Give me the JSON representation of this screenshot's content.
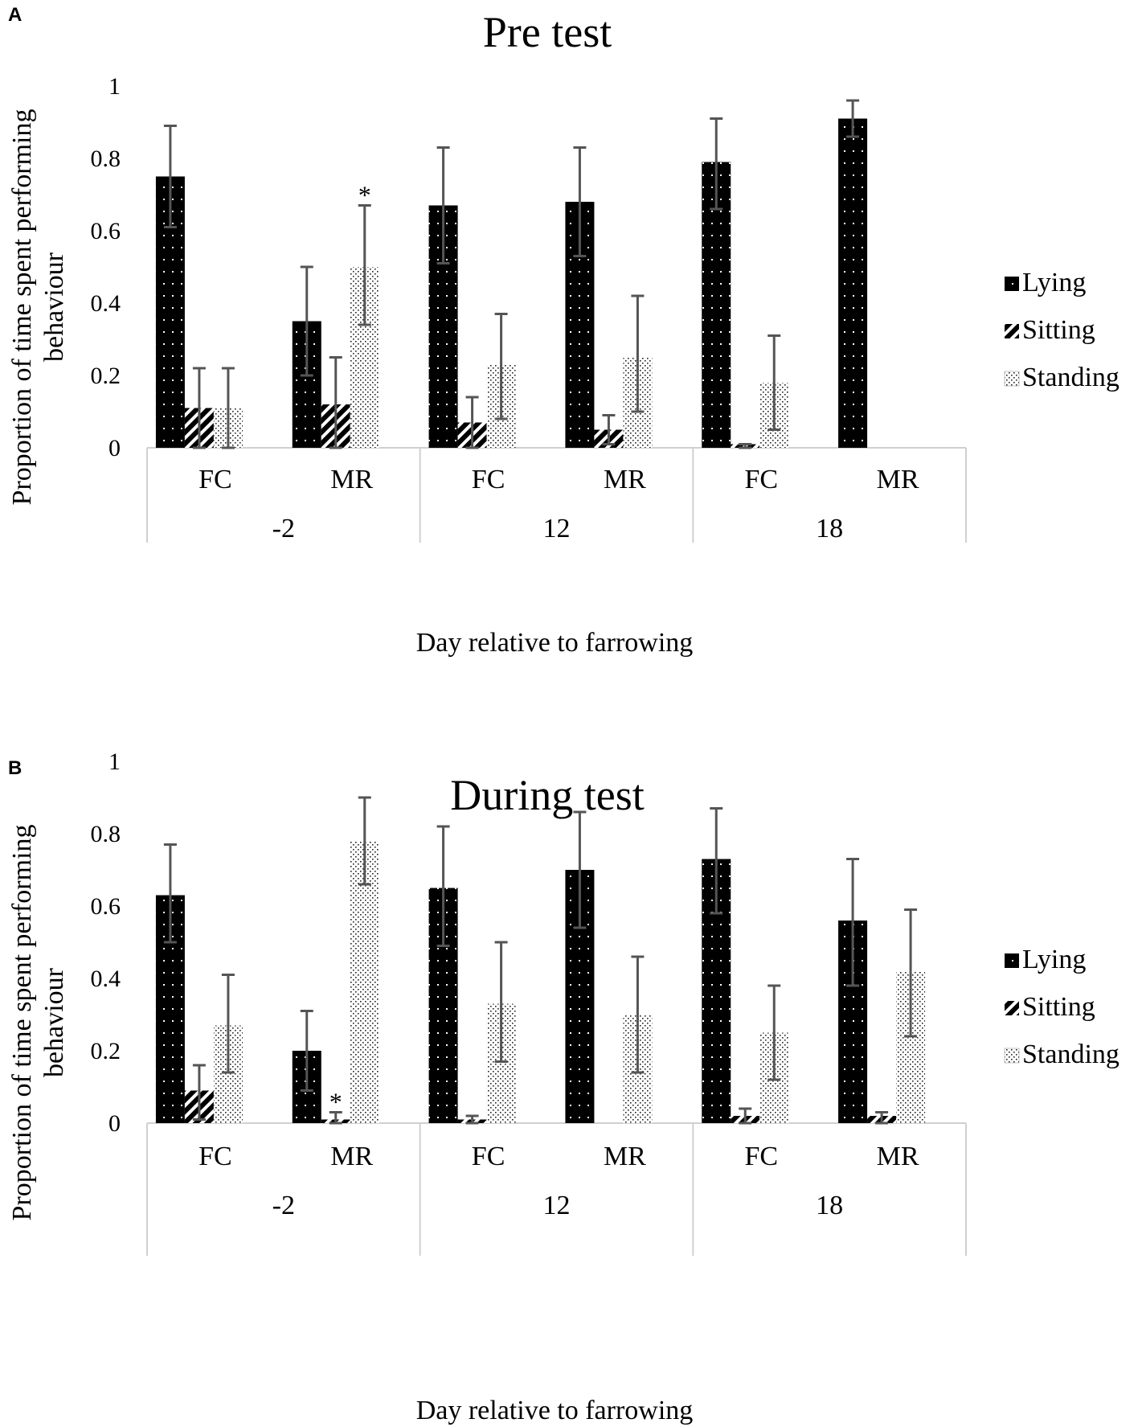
{
  "chart_data": [
    {
      "type": "bar",
      "panel": "A",
      "title": "Pre test",
      "xlabel": "Day relative to farrowing",
      "ylabel": [
        "Proportion of time spent performing",
        "behaviour"
      ],
      "ylim": [
        0,
        1
      ],
      "yticks": [
        "0",
        "0.2",
        "0.4",
        "0.6",
        "0.8",
        "1"
      ],
      "groups": [
        "-2",
        "12",
        "18"
      ],
      "categories": [
        "FC",
        "MR",
        "FC",
        "MR",
        "FC",
        "MR"
      ],
      "legend": [
        "Lying",
        "Sitting",
        "Standing"
      ],
      "series": [
        {
          "name": "Lying",
          "values": [
            0.75,
            0.35,
            0.67,
            0.68,
            0.79,
            0.91
          ],
          "err_low": [
            0.61,
            0.2,
            0.51,
            0.53,
            0.66,
            0.86
          ],
          "err_high": [
            0.89,
            0.5,
            0.83,
            0.83,
            0.91,
            0.96
          ]
        },
        {
          "name": "Sitting",
          "values": [
            0.11,
            0.12,
            0.07,
            0.05,
            0.01,
            0.0
          ],
          "err_low": [
            0.0,
            0.0,
            0.0,
            0.01,
            0.0,
            null
          ],
          "err_high": [
            0.22,
            0.25,
            0.14,
            0.09,
            0.01,
            null
          ]
        },
        {
          "name": "Standing",
          "values": [
            0.11,
            0.5,
            0.23,
            0.25,
            0.18,
            0.0
          ],
          "err_low": [
            0.0,
            0.34,
            0.08,
            0.1,
            0.05,
            null
          ],
          "err_high": [
            0.22,
            0.67,
            0.37,
            0.42,
            0.31,
            null
          ]
        }
      ],
      "annotations": [
        {
          "text": "*",
          "category_index": 1,
          "series": "Standing"
        }
      ]
    },
    {
      "type": "bar",
      "panel": "B",
      "title": "During test",
      "xlabel": "Day relative to farrowing",
      "ylabel": [
        "Proportion of time spent performing",
        "behaviour"
      ],
      "ylim": [
        0,
        1
      ],
      "yticks": [
        "0",
        "0.2",
        "0.4",
        "0.6",
        "0.8",
        "1"
      ],
      "groups": [
        "-2",
        "12",
        "18"
      ],
      "categories": [
        "FC",
        "MR",
        "FC",
        "MR",
        "FC",
        "MR"
      ],
      "legend": [
        "Lying",
        "Sitting",
        "Standing"
      ],
      "series": [
        {
          "name": "Lying",
          "values": [
            0.63,
            0.2,
            0.65,
            0.7,
            0.73,
            0.56
          ],
          "err_low": [
            0.5,
            0.09,
            0.49,
            0.54,
            0.58,
            0.38
          ],
          "err_high": [
            0.77,
            0.31,
            0.82,
            0.86,
            0.87,
            0.73
          ]
        },
        {
          "name": "Sitting",
          "values": [
            0.09,
            0.01,
            0.01,
            0.0,
            0.02,
            0.02
          ],
          "err_low": [
            0.01,
            0.0,
            0.0,
            null,
            0.0,
            0.0
          ],
          "err_high": [
            0.16,
            0.03,
            0.02,
            null,
            0.04,
            0.03
          ]
        },
        {
          "name": "Standing",
          "values": [
            0.27,
            0.78,
            0.33,
            0.3,
            0.25,
            0.42
          ],
          "err_low": [
            0.14,
            0.66,
            0.17,
            0.14,
            0.12,
            0.24
          ],
          "err_high": [
            0.41,
            0.9,
            0.5,
            0.46,
            0.38,
            0.59
          ]
        }
      ],
      "annotations": [
        {
          "text": "*",
          "category_index": 1,
          "series": "Sitting"
        }
      ]
    }
  ]
}
